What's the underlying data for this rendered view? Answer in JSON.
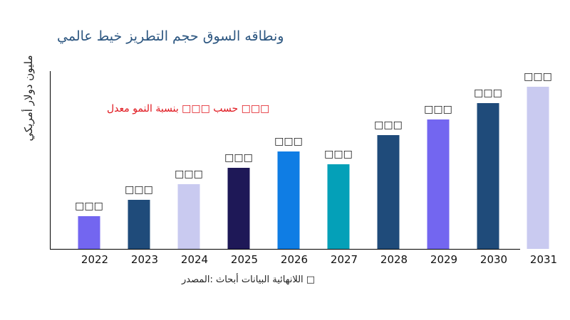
{
  "chart_data": {
    "type": "bar",
    "title": "ونطاقه السوق حجم التطريز خيط عالمي",
    "ylabel": "مليون دولار أمريكي",
    "xlabel": "",
    "annotation": "□□□ حسب □□□ بنسبة النمو معدل",
    "source": "□ اللانهائية البيانات أبحاث :المصدر",
    "categories": [
      "2022",
      "2023",
      "2024",
      "2025",
      "2026",
      "2027",
      "2028",
      "2029",
      "2030",
      "2031"
    ],
    "values": [
      46,
      69,
      91,
      114,
      137,
      119,
      160,
      182,
      205,
      228
    ],
    "data_labels": [
      "□□□",
      "□□□",
      "□□□",
      "□□□",
      "□□□",
      "□□□",
      "□□□",
      "□□□",
      "□□□",
      "□□□"
    ],
    "colors": [
      "#7366f0",
      "#1f4b7a",
      "#c9caf0",
      "#1e1857",
      "#0f7de4",
      "#04a0b8",
      "#1f4b7a",
      "#7366f0",
      "#1f4b7a",
      "#c9caf0"
    ],
    "ylim": [
      0,
      250
    ],
    "grid": false,
    "legend": "none"
  }
}
